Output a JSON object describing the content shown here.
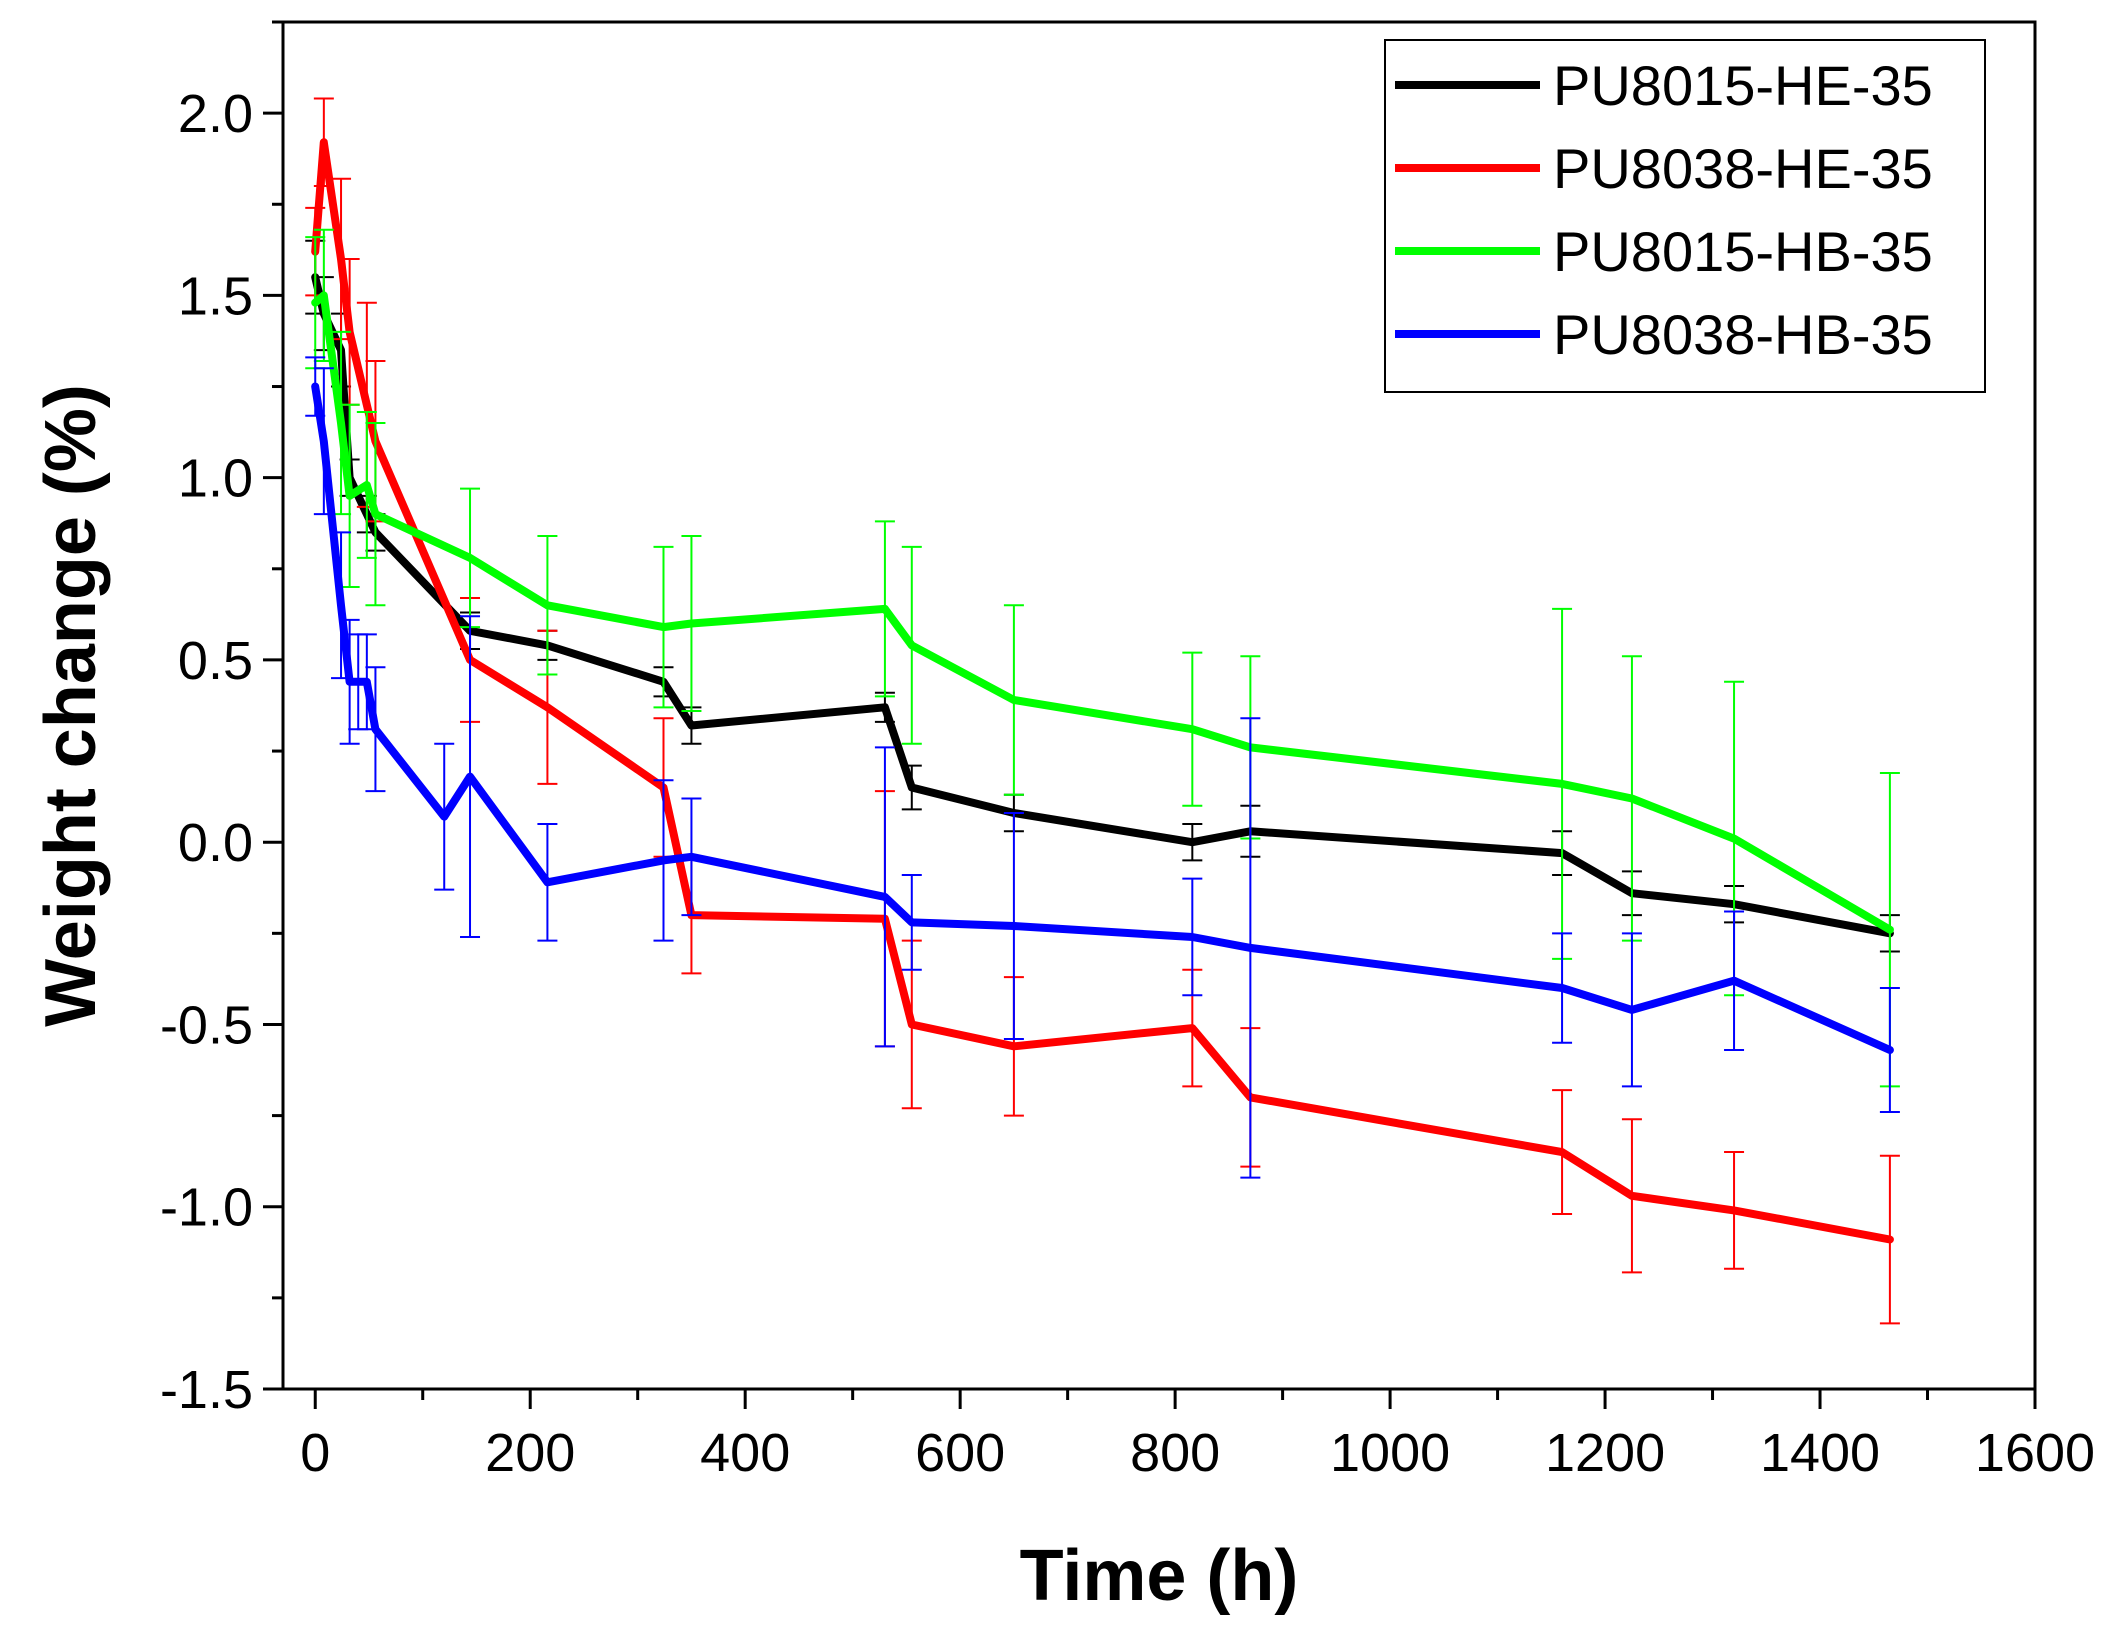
{
  "chart_data": {
    "type": "line",
    "title": "",
    "xlabel": "Time (h)",
    "ylabel": "Weight change (%)",
    "xlim": [
      -30,
      1600
    ],
    "ylim": [
      -1.5,
      2.25
    ],
    "xticks": [
      0,
      200,
      400,
      600,
      800,
      1000,
      1200,
      1400,
      1600
    ],
    "xtick_labels": [
      "0",
      "200",
      "400",
      "600",
      "800",
      "1000",
      "1200",
      "1400",
      "1600"
    ],
    "yticks": [
      -1.5,
      -1.0,
      -0.5,
      0.0,
      0.5,
      1.0,
      1.5,
      2.0
    ],
    "ytick_labels": [
      "-1.5",
      "-1.0",
      "-0.5",
      "0.0",
      "0.5",
      "1.0",
      "1.5",
      "2.0"
    ],
    "legend_position": "top-right",
    "grid": false,
    "series": [
      {
        "name": "PU8015-HE-35",
        "color": "#000000",
        "x": [
          0,
          8,
          24,
          32,
          48,
          56,
          144,
          216,
          324,
          350,
          530,
          555,
          650,
          816,
          870,
          1160,
          1225,
          1320,
          1465
        ],
        "y": [
          1.55,
          1.45,
          1.35,
          1.0,
          0.9,
          0.85,
          0.58,
          0.54,
          0.44,
          0.32,
          0.37,
          0.15,
          0.08,
          0.0,
          0.03,
          -0.03,
          -0.14,
          -0.17,
          -0.25
        ],
        "err": [
          0.1,
          0.1,
          0.1,
          0.05,
          0.05,
          0.05,
          0.05,
          0.04,
          0.04,
          0.05,
          0.04,
          0.06,
          0.05,
          0.05,
          0.07,
          0.06,
          0.06,
          0.05,
          0.05
        ]
      },
      {
        "name": "PU8038-HE-35",
        "color": "#ff0000",
        "x": [
          0,
          8,
          24,
          32,
          48,
          56,
          144,
          216,
          324,
          350,
          530,
          555,
          650,
          816,
          870,
          1160,
          1225,
          1320,
          1465
        ],
        "y": [
          1.62,
          1.92,
          1.6,
          1.4,
          1.2,
          1.1,
          0.5,
          0.37,
          0.15,
          -0.2,
          -0.21,
          -0.5,
          -0.56,
          -0.51,
          -0.7,
          -0.85,
          -0.97,
          -1.01,
          -1.09
        ],
        "err": [
          0.12,
          0.12,
          0.22,
          0.2,
          0.28,
          0.22,
          0.17,
          0.21,
          0.19,
          0.16,
          0.35,
          0.23,
          0.19,
          0.16,
          0.19,
          0.17,
          0.21,
          0.16,
          0.23
        ]
      },
      {
        "name": "PU8015-HB-35",
        "color": "#00ff00",
        "x": [
          0,
          8,
          24,
          32,
          48,
          56,
          144,
          216,
          324,
          350,
          530,
          555,
          650,
          816,
          870,
          1160,
          1225,
          1320,
          1465
        ],
        "y": [
          1.48,
          1.5,
          1.15,
          0.95,
          0.98,
          0.9,
          0.78,
          0.65,
          0.59,
          0.6,
          0.64,
          0.54,
          0.39,
          0.31,
          0.26,
          0.16,
          0.12,
          0.01,
          -0.24
        ],
        "err": [
          0.18,
          0.18,
          0.25,
          0.25,
          0.2,
          0.25,
          0.19,
          0.19,
          0.22,
          0.24,
          0.24,
          0.27,
          0.26,
          0.21,
          0.25,
          0.48,
          0.39,
          0.43,
          0.43
        ]
      },
      {
        "name": "PU8038-HB-35",
        "color": "#0000ff",
        "x": [
          0,
          8,
          24,
          32,
          40,
          48,
          56,
          120,
          144,
          216,
          324,
          350,
          530,
          555,
          650,
          816,
          870,
          1160,
          1225,
          1320,
          1465
        ],
        "y": [
          1.25,
          1.1,
          0.65,
          0.44,
          0.44,
          0.44,
          0.31,
          0.07,
          0.18,
          -0.11,
          -0.05,
          -0.04,
          -0.15,
          -0.22,
          -0.23,
          -0.26,
          -0.29,
          -0.4,
          -0.46,
          -0.38,
          -0.57
        ],
        "err": [
          0.08,
          0.2,
          0.2,
          0.17,
          0.13,
          0.13,
          0.17,
          0.2,
          0.44,
          0.16,
          0.22,
          0.16,
          0.41,
          0.13,
          0.31,
          0.16,
          0.63,
          0.15,
          0.21,
          0.19,
          0.17
        ]
      }
    ]
  }
}
